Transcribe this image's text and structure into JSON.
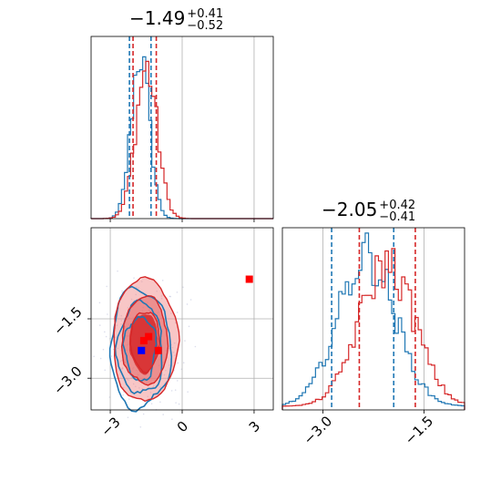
{
  "colors": {
    "red": "#d62728",
    "blue": "#1f77b4",
    "red_fill": "#f08080",
    "grid": "#b0b0b0"
  },
  "titles": {
    "p1": {
      "value": "−1.49",
      "plus": "+0.41",
      "minus": "−0.52"
    },
    "p2": {
      "value": "−2.05",
      "plus": "+0.42",
      "minus": "−0.41"
    }
  },
  "chart_data": [
    {
      "type": "histogram",
      "panel": "top-left marginal",
      "xlim": [
        -3.8,
        3.8
      ],
      "vlines_blue": [
        -2.2,
        -1.3
      ],
      "vlines_red": [
        -2.05,
        -1.08
      ],
      "series": [
        {
          "color": "blue",
          "center": -1.75,
          "sigma": 0.38
        },
        {
          "color": "red",
          "center": -1.49,
          "sigma": 0.45
        }
      ]
    },
    {
      "type": "scatter",
      "panel": "bottom-left 2D",
      "xlim": [
        -3.8,
        3.8
      ],
      "ylim": [
        -3.8,
        0.8
      ],
      "xticks": [
        "−3",
        "0",
        "3"
      ],
      "yticks": [
        "−1.5",
        "−3.0"
      ],
      "xtick_values": [
        -3,
        0,
        3
      ],
      "ytick_values": [
        -1.5,
        -3.0
      ],
      "red_points": [
        [
          2.8,
          -0.5
        ],
        [
          -1.4,
          -1.95
        ],
        [
          -1.6,
          -2.05
        ],
        [
          -1.0,
          -2.3
        ]
      ],
      "blue_points": [
        [
          -1.7,
          -2.3
        ]
      ]
    },
    {
      "type": "histogram",
      "panel": "bottom-right marginal",
      "xlim": [
        -3.6,
        -0.9
      ],
      "xticks": [
        "−3.0",
        "−1.5"
      ],
      "xtick_values": [
        -3.0,
        -1.5
      ],
      "vlines_blue": [
        -2.87,
        -1.95
      ],
      "vlines_red": [
        -2.46,
        -1.63
      ],
      "series": [
        {
          "color": "blue",
          "center": -2.35,
          "sigma": 0.42
        },
        {
          "color": "red",
          "center": -2.05,
          "sigma": 0.41
        }
      ]
    }
  ]
}
